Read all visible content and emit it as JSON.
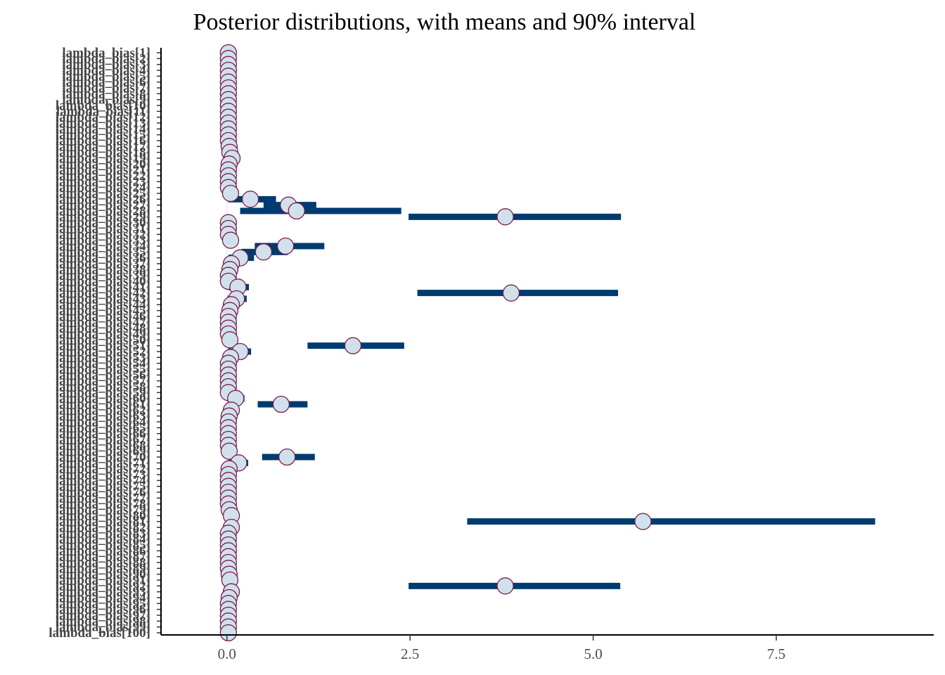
{
  "chart_data": {
    "type": "interval",
    "title": "Posterior distributions, with means and 90% interval",
    "xlabel": "",
    "ylabel": "",
    "x_ticks": [
      0.0,
      2.5,
      5.0,
      7.5
    ],
    "x_tick_labels": [
      "0.0",
      "2.5",
      "5.0",
      "7.5"
    ],
    "xlim": [
      -0.9,
      9.65
    ],
    "grid": false,
    "colors": {
      "interval": "#003b6f",
      "point_fill": "#d1e1ec",
      "point_stroke": "#7b1d4d",
      "axis": "#000000",
      "zero_line": "#e6e6e6"
    },
    "parameters": [
      {
        "label": "lambda_bias[1]",
        "mean": 0.02,
        "low": 0.0,
        "high": 0.05
      },
      {
        "label": "lambda_bias[2]",
        "mean": 0.02,
        "low": 0.0,
        "high": 0.05
      },
      {
        "label": "lambda_bias[3]",
        "mean": 0.02,
        "low": 0.0,
        "high": 0.05
      },
      {
        "label": "lambda_bias[4]",
        "mean": 0.02,
        "low": 0.0,
        "high": 0.05
      },
      {
        "label": "lambda_bias[5]",
        "mean": 0.02,
        "low": 0.0,
        "high": 0.05
      },
      {
        "label": "lambda_bias[6]",
        "mean": 0.02,
        "low": 0.0,
        "high": 0.05
      },
      {
        "label": "lambda_bias[7]",
        "mean": 0.02,
        "low": 0.0,
        "high": 0.05
      },
      {
        "label": "lambda_bias[8]",
        "mean": 0.02,
        "low": 0.0,
        "high": 0.05
      },
      {
        "label": "lambda_bias[9]",
        "mean": 0.02,
        "low": 0.0,
        "high": 0.05
      },
      {
        "label": "lambda_bias[10]",
        "mean": 0.02,
        "low": 0.0,
        "high": 0.05
      },
      {
        "label": "lambda_bias[11]",
        "mean": 0.02,
        "low": 0.0,
        "high": 0.05
      },
      {
        "label": "lambda_bias[12]",
        "mean": 0.02,
        "low": 0.0,
        "high": 0.05
      },
      {
        "label": "lambda_bias[13]",
        "mean": 0.02,
        "low": 0.0,
        "high": 0.05
      },
      {
        "label": "lambda_bias[14]",
        "mean": 0.02,
        "low": 0.0,
        "high": 0.05
      },
      {
        "label": "lambda_bias[15]",
        "mean": 0.02,
        "low": 0.0,
        "high": 0.05
      },
      {
        "label": "lambda_bias[16]",
        "mean": 0.02,
        "low": 0.0,
        "high": 0.05
      },
      {
        "label": "lambda_bias[17]",
        "mean": 0.03,
        "low": 0.0,
        "high": 0.06
      },
      {
        "label": "lambda_bias[18]",
        "mean": 0.04,
        "low": 0.0,
        "high": 0.08
      },
      {
        "label": "lambda_bias[19]",
        "mean": 0.07,
        "low": 0.0,
        "high": 0.15
      },
      {
        "label": "lambda_bias[20]",
        "mean": 0.03,
        "low": 0.0,
        "high": 0.06
      },
      {
        "label": "lambda_bias[21]",
        "mean": 0.02,
        "low": 0.0,
        "high": 0.05
      },
      {
        "label": "lambda_bias[22]",
        "mean": 0.02,
        "low": 0.0,
        "high": 0.05
      },
      {
        "label": "lambda_bias[23]",
        "mean": 0.02,
        "low": 0.0,
        "high": 0.05
      },
      {
        "label": "lambda_bias[24]",
        "mean": 0.02,
        "low": 0.0,
        "high": 0.05
      },
      {
        "label": "lambda_bias[25]",
        "mean": 0.05,
        "low": 0.0,
        "high": 0.1
      },
      {
        "label": "lambda_bias[26]",
        "mean": 0.32,
        "low": 0.02,
        "high": 0.67
      },
      {
        "label": "lambda_bias[27]",
        "mean": 0.84,
        "low": 0.5,
        "high": 1.22
      },
      {
        "label": "lambda_bias[28]",
        "mean": 0.95,
        "low": 0.18,
        "high": 2.38
      },
      {
        "label": "lambda_bias[29]",
        "mean": 3.8,
        "low": 2.48,
        "high": 5.38
      },
      {
        "label": "lambda_bias[30]",
        "mean": 0.02,
        "low": 0.0,
        "high": 0.05
      },
      {
        "label": "lambda_bias[31]",
        "mean": 0.02,
        "low": 0.0,
        "high": 0.05
      },
      {
        "label": "lambda_bias[32]",
        "mean": 0.02,
        "low": 0.0,
        "high": 0.05
      },
      {
        "label": "lambda_bias[33]",
        "mean": 0.05,
        "low": 0.0,
        "high": 0.1
      },
      {
        "label": "lambda_bias[34]",
        "mean": 0.8,
        "low": 0.38,
        "high": 1.33
      },
      {
        "label": "lambda_bias[35]",
        "mean": 0.5,
        "low": 0.2,
        "high": 0.83
      },
      {
        "label": "lambda_bias[36]",
        "mean": 0.18,
        "low": 0.02,
        "high": 0.37
      },
      {
        "label": "lambda_bias[37]",
        "mean": 0.06,
        "low": 0.0,
        "high": 0.12
      },
      {
        "label": "lambda_bias[38]",
        "mean": 0.04,
        "low": 0.0,
        "high": 0.08
      },
      {
        "label": "lambda_bias[39]",
        "mean": 0.02,
        "low": 0.0,
        "high": 0.05
      },
      {
        "label": "lambda_bias[40]",
        "mean": 0.02,
        "low": 0.0,
        "high": 0.05
      },
      {
        "label": "lambda_bias[41]",
        "mean": 0.15,
        "low": 0.02,
        "high": 0.3
      },
      {
        "label": "lambda_bias[42]",
        "mean": 3.88,
        "low": 2.6,
        "high": 5.34
      },
      {
        "label": "lambda_bias[43]",
        "mean": 0.13,
        "low": 0.01,
        "high": 0.27
      },
      {
        "label": "lambda_bias[44]",
        "mean": 0.06,
        "low": 0.0,
        "high": 0.12
      },
      {
        "label": "lambda_bias[45]",
        "mean": 0.04,
        "low": 0.0,
        "high": 0.08
      },
      {
        "label": "lambda_bias[46]",
        "mean": 0.02,
        "low": 0.0,
        "high": 0.05
      },
      {
        "label": "lambda_bias[47]",
        "mean": 0.02,
        "low": 0.0,
        "high": 0.05
      },
      {
        "label": "lambda_bias[48]",
        "mean": 0.02,
        "low": 0.0,
        "high": 0.05
      },
      {
        "label": "lambda_bias[49]",
        "mean": 0.02,
        "low": 0.0,
        "high": 0.05
      },
      {
        "label": "lambda_bias[50]",
        "mean": 0.04,
        "low": 0.0,
        "high": 0.08
      },
      {
        "label": "lambda_bias[51]",
        "mean": 1.72,
        "low": 1.1,
        "high": 2.42
      },
      {
        "label": "lambda_bias[52]",
        "mean": 0.18,
        "low": 0.02,
        "high": 0.33
      },
      {
        "label": "lambda_bias[53]",
        "mean": 0.05,
        "low": 0.0,
        "high": 0.1
      },
      {
        "label": "lambda_bias[54]",
        "mean": 0.02,
        "low": 0.0,
        "high": 0.05
      },
      {
        "label": "lambda_bias[55]",
        "mean": 0.02,
        "low": 0.0,
        "high": 0.05
      },
      {
        "label": "lambda_bias[56]",
        "mean": 0.02,
        "low": 0.0,
        "high": 0.05
      },
      {
        "label": "lambda_bias[57]",
        "mean": 0.02,
        "low": 0.0,
        "high": 0.05
      },
      {
        "label": "lambda_bias[58]",
        "mean": 0.02,
        "low": 0.0,
        "high": 0.05
      },
      {
        "label": "lambda_bias[59]",
        "mean": 0.02,
        "low": 0.0,
        "high": 0.05
      },
      {
        "label": "lambda_bias[60]",
        "mean": 0.12,
        "low": 0.01,
        "high": 0.24
      },
      {
        "label": "lambda_bias[61]",
        "mean": 0.74,
        "low": 0.42,
        "high": 1.1
      },
      {
        "label": "lambda_bias[62]",
        "mean": 0.06,
        "low": 0.0,
        "high": 0.12
      },
      {
        "label": "lambda_bias[63]",
        "mean": 0.03,
        "low": 0.0,
        "high": 0.06
      },
      {
        "label": "lambda_bias[64]",
        "mean": 0.02,
        "low": 0.0,
        "high": 0.05
      },
      {
        "label": "lambda_bias[65]",
        "mean": 0.02,
        "low": 0.0,
        "high": 0.05
      },
      {
        "label": "lambda_bias[66]",
        "mean": 0.02,
        "low": 0.0,
        "high": 0.05
      },
      {
        "label": "lambda_bias[67]",
        "mean": 0.02,
        "low": 0.0,
        "high": 0.05
      },
      {
        "label": "lambda_bias[68]",
        "mean": 0.02,
        "low": 0.0,
        "high": 0.05
      },
      {
        "label": "lambda_bias[69]",
        "mean": 0.03,
        "low": 0.0,
        "high": 0.06
      },
      {
        "label": "lambda_bias[70]",
        "mean": 0.82,
        "low": 0.48,
        "high": 1.2
      },
      {
        "label": "lambda_bias[71]",
        "mean": 0.16,
        "low": 0.02,
        "high": 0.29
      },
      {
        "label": "lambda_bias[72]",
        "mean": 0.03,
        "low": 0.0,
        "high": 0.06
      },
      {
        "label": "lambda_bias[73]",
        "mean": 0.02,
        "low": 0.0,
        "high": 0.05
      },
      {
        "label": "lambda_bias[74]",
        "mean": 0.02,
        "low": 0.0,
        "high": 0.05
      },
      {
        "label": "lambda_bias[75]",
        "mean": 0.02,
        "low": 0.0,
        "high": 0.05
      },
      {
        "label": "lambda_bias[76]",
        "mean": 0.02,
        "low": 0.0,
        "high": 0.05
      },
      {
        "label": "lambda_bias[77]",
        "mean": 0.02,
        "low": 0.0,
        "high": 0.05
      },
      {
        "label": "lambda_bias[78]",
        "mean": 0.02,
        "low": 0.0,
        "high": 0.05
      },
      {
        "label": "lambda_bias[79]",
        "mean": 0.03,
        "low": 0.0,
        "high": 0.06
      },
      {
        "label": "lambda_bias[80]",
        "mean": 0.06,
        "low": 0.0,
        "high": 0.12
      },
      {
        "label": "lambda_bias[81]",
        "mean": 5.68,
        "low": 3.28,
        "high": 8.85
      },
      {
        "label": "lambda_bias[82]",
        "mean": 0.06,
        "low": 0.0,
        "high": 0.12
      },
      {
        "label": "lambda_bias[83]",
        "mean": 0.02,
        "low": 0.0,
        "high": 0.05
      },
      {
        "label": "lambda_bias[84]",
        "mean": 0.02,
        "low": 0.0,
        "high": 0.05
      },
      {
        "label": "lambda_bias[85]",
        "mean": 0.02,
        "low": 0.0,
        "high": 0.05
      },
      {
        "label": "lambda_bias[86]",
        "mean": 0.02,
        "low": 0.0,
        "high": 0.05
      },
      {
        "label": "lambda_bias[87]",
        "mean": 0.02,
        "low": 0.0,
        "high": 0.05
      },
      {
        "label": "lambda_bias[88]",
        "mean": 0.02,
        "low": 0.0,
        "high": 0.05
      },
      {
        "label": "lambda_bias[89]",
        "mean": 0.02,
        "low": 0.0,
        "high": 0.05
      },
      {
        "label": "lambda_bias[90]",
        "mean": 0.03,
        "low": 0.0,
        "high": 0.06
      },
      {
        "label": "lambda_bias[91]",
        "mean": 0.04,
        "low": 0.0,
        "high": 0.08
      },
      {
        "label": "lambda_bias[92]",
        "mean": 3.8,
        "low": 2.48,
        "high": 5.37
      },
      {
        "label": "lambda_bias[93]",
        "mean": 0.06,
        "low": 0.0,
        "high": 0.12
      },
      {
        "label": "lambda_bias[94]",
        "mean": 0.03,
        "low": 0.0,
        "high": 0.06
      },
      {
        "label": "lambda_bias[95]",
        "mean": 0.02,
        "low": 0.0,
        "high": 0.05
      },
      {
        "label": "lambda_bias[96]",
        "mean": 0.02,
        "low": 0.0,
        "high": 0.05
      },
      {
        "label": "lambda_bias[97]",
        "mean": 0.02,
        "low": 0.0,
        "high": 0.05
      },
      {
        "label": "lambda_bias[98]",
        "mean": 0.02,
        "low": 0.0,
        "high": 0.05
      },
      {
        "label": "lambda_bias[99]",
        "mean": 0.02,
        "low": 0.0,
        "high": 0.05
      },
      {
        "label": "lambda_bias[100]",
        "mean": 0.02,
        "low": 0.0,
        "high": 0.05
      }
    ]
  }
}
